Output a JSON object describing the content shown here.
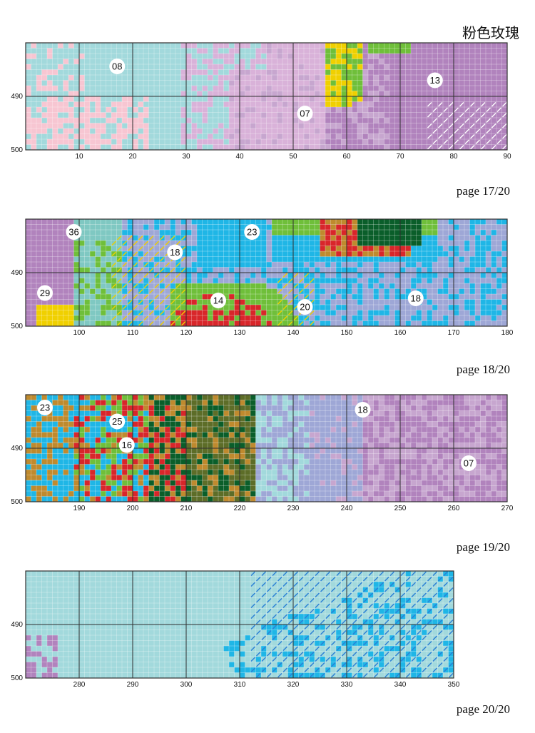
{
  "title": "粉色玫瑰",
  "colors": {
    "teal": "#a2d9dc",
    "pink": "#f7c6d2",
    "mauve": "#d9b2d9",
    "lilac": "#c7a6cf",
    "purple": "#b183bd",
    "grayblue": "#9ea7d6",
    "sky": "#1fb6e6",
    "seafoam": "#7fc8c2",
    "green": "#6fbf3a",
    "darkgreen": "#0a5e2a",
    "olive": "#5d6d28",
    "ochre": "#bf8a2e",
    "yellow": "#f0d000",
    "navy": "#22288a",
    "red": "#d8262a",
    "grid": "#2f2f2f"
  },
  "panels": [
    {
      "page": "page 17/20",
      "y_ticks": [
        "490",
        "500"
      ],
      "x_ticks": [
        "10",
        "20",
        "30",
        "40",
        "50",
        "60",
        "70",
        "80",
        "90"
      ],
      "labels": [
        "08",
        "07",
        "13"
      ]
    },
    {
      "page": "page 18/20",
      "y_ticks": [
        "490",
        "500"
      ],
      "x_ticks": [
        "100",
        "110",
        "120",
        "130",
        "140",
        "150",
        "160",
        "170",
        "180"
      ],
      "labels": [
        "36",
        "23",
        "18",
        "29",
        "14",
        "20",
        "18"
      ]
    },
    {
      "page": "page 19/20",
      "y_ticks": [
        "490",
        "500"
      ],
      "x_ticks": [
        "190",
        "200",
        "210",
        "220",
        "230",
        "240",
        "250",
        "260",
        "270"
      ],
      "labels": [
        "23",
        "25",
        "16",
        "18",
        "07"
      ]
    },
    {
      "page": "page 20/20",
      "y_ticks": [
        "490",
        "500"
      ],
      "x_ticks": [
        "280",
        "290",
        "300",
        "310",
        "320",
        "330",
        "340",
        "350"
      ],
      "labels": []
    }
  ]
}
